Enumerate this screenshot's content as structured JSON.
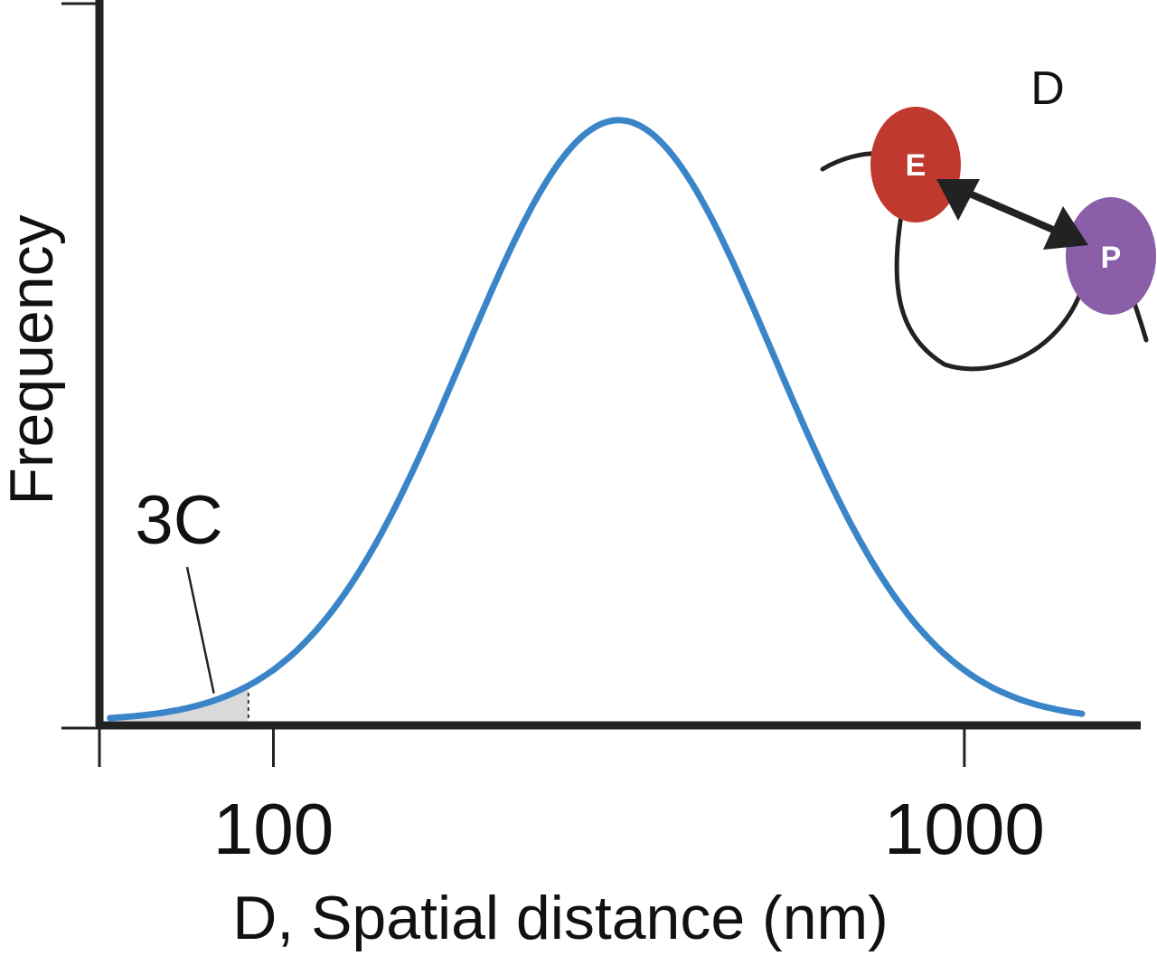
{
  "chart_data": {
    "type": "area",
    "xscale": "log",
    "xlabel": "D, Spatial distance (nm)",
    "ylabel": "Frequency",
    "xlim": [
      56,
      1800
    ],
    "ylim": [
      0,
      1.2
    ],
    "x_ticks": [
      {
        "value": 100,
        "label": "100"
      },
      {
        "value": 1000,
        "label": "1000"
      }
    ],
    "series": [
      {
        "distribution": "lognormal",
        "peak_x": 316,
        "peak_y": 1.0,
        "log10_sigma": 0.225,
        "x_range": [
          58,
          1480
        ],
        "color": "#3a85c8"
      }
    ],
    "shaded_region": {
      "x_min": 58,
      "x_max": 92,
      "color": "#d9d9d9"
    },
    "annotations": [
      {
        "text": "3C",
        "target_x": 82
      }
    ],
    "grid": false,
    "inset": {
      "label": "D",
      "nodes": [
        {
          "text": "E",
          "color": "#c0392f"
        },
        {
          "text": "P",
          "color": "#8a5ea8"
        }
      ]
    }
  }
}
